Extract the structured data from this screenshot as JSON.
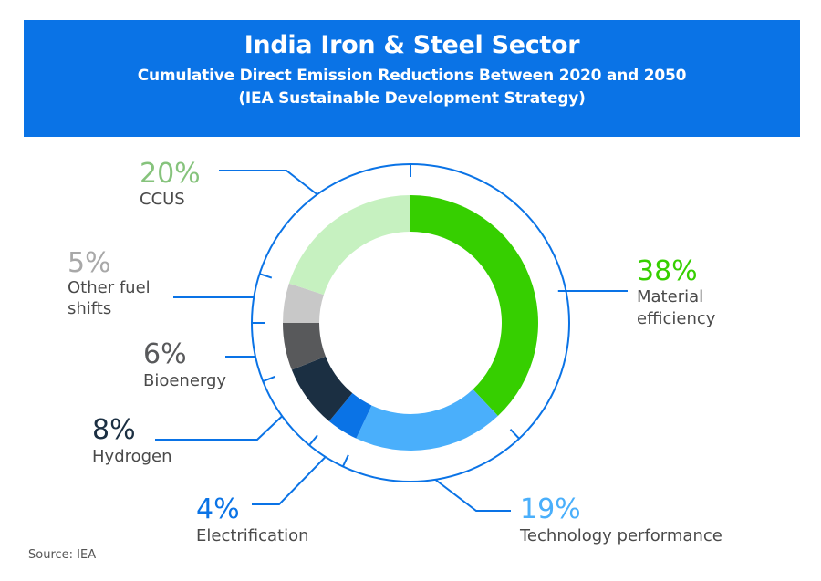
{
  "header": {
    "title": "India Iron & Steel Sector",
    "subtitle_line1": "Cumulative Direct Emission Reductions Between 2020 and 2050",
    "subtitle_line2": "(IEA Sustainable Development Strategy)"
  },
  "source": "Source: IEA",
  "colors": {
    "banner": "#0a73e6",
    "ring": "#0a73e6",
    "label_text": "#4a4a4a"
  },
  "chart_data": {
    "type": "pie",
    "variant": "donut",
    "title": "India Iron & Steel Sector — Cumulative Direct Emission Reductions Between 2020 and 2050 (IEA Sustainable Development Strategy)",
    "unit": "%",
    "slices": [
      {
        "name": "Material efficiency",
        "value": 38,
        "label": "38%",
        "color": "#36cf00",
        "pct_color": "#36cf00",
        "label_lines": [
          "Material",
          "efficiency"
        ]
      },
      {
        "name": "Technology performance",
        "value": 19,
        "label": "19%",
        "color": "#4aaffb",
        "pct_color": "#4aaffb",
        "label_lines": [
          "Technology performance"
        ]
      },
      {
        "name": "Electrification",
        "value": 4,
        "label": "4%",
        "color": "#0a73e6",
        "pct_color": "#0a73e6",
        "label_lines": [
          "Electrification"
        ]
      },
      {
        "name": "Hydrogen",
        "value": 8,
        "label": "8%",
        "color": "#1b2f42",
        "pct_color": "#1b2f42",
        "label_lines": [
          "Hydrogen"
        ]
      },
      {
        "name": "Bioenergy",
        "value": 6,
        "label": "6%",
        "color": "#58595b",
        "pct_color": "#58595b",
        "label_lines": [
          "Bioenergy"
        ]
      },
      {
        "name": "Other fuel shifts",
        "value": 5,
        "label": "5%",
        "color": "#c8c8c8",
        "pct_color": "#a8a8a8",
        "label_lines": [
          "Other fuel",
          "shifts"
        ]
      },
      {
        "name": "CCUS",
        "value": 20,
        "label": "20%",
        "color": "#c6f1c0",
        "pct_color": "#86c37c",
        "label_lines": [
          "CCUS"
        ]
      }
    ],
    "start_angle": "12 o'clock",
    "direction": "clockwise",
    "legend": "none (direct labels with leader lines)"
  }
}
